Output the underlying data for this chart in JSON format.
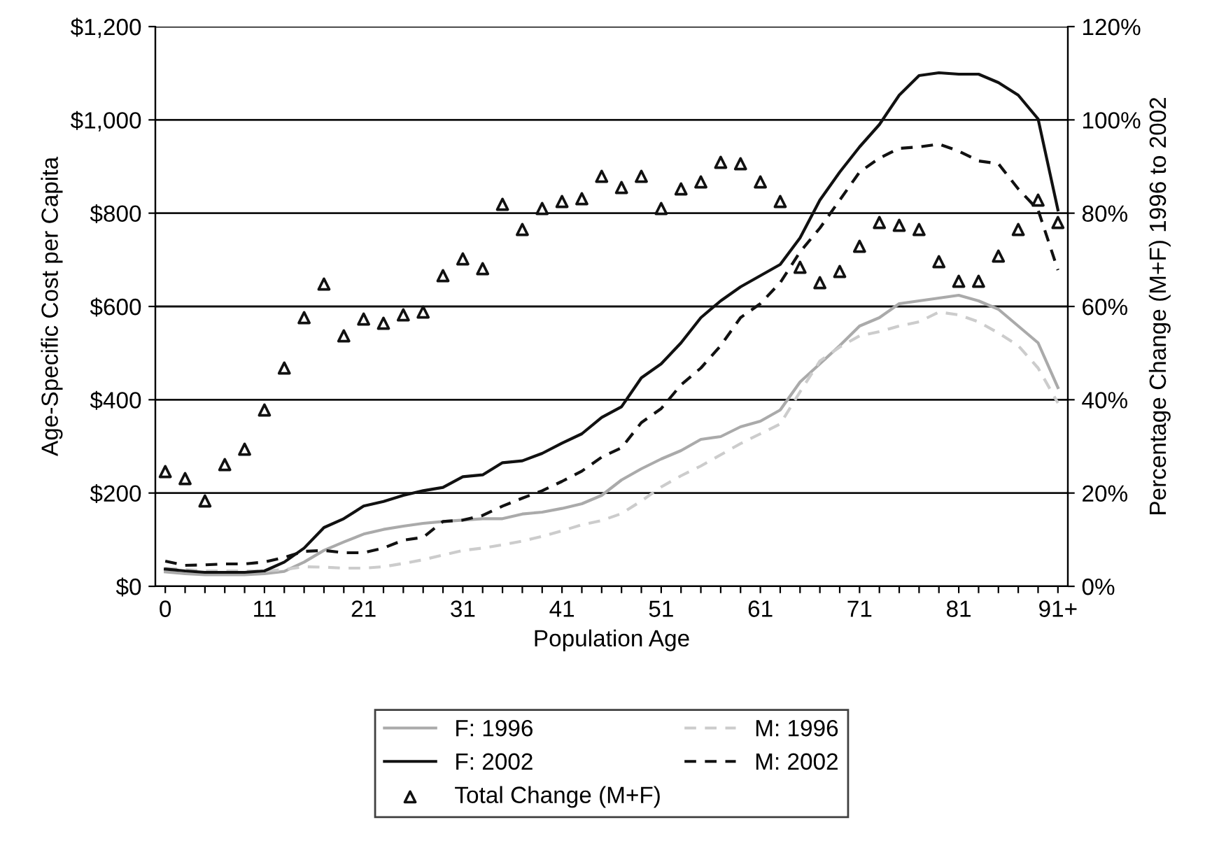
{
  "chart_data": {
    "type": "line",
    "xlabel": "Population Age",
    "ylabel": "Age-Specific Cost per Capita",
    "y2label": "Percentage Change (M+F) 1996 to 2002",
    "categories": [
      "0",
      null,
      null,
      null,
      null,
      "11",
      null,
      null,
      null,
      null,
      "21",
      null,
      null,
      null,
      null,
      "31",
      null,
      null,
      null,
      null,
      "41",
      null,
      null,
      null,
      null,
      "51",
      null,
      null,
      null,
      null,
      "61",
      null,
      null,
      null,
      null,
      "71",
      null,
      null,
      null,
      null,
      "81",
      null,
      null,
      null,
      null,
      "91+"
    ],
    "ylim": [
      0,
      1200
    ],
    "yticks": [
      {
        "value": 0,
        "label": "$0"
      },
      {
        "value": 200,
        "label": "$200"
      },
      {
        "value": 400,
        "label": "$400"
      },
      {
        "value": 600,
        "label": "$600"
      },
      {
        "value": 800,
        "label": "$800"
      },
      {
        "value": 1000,
        "label": "$1,000"
      },
      {
        "value": 1200,
        "label": "$1,200"
      }
    ],
    "y2lim": [
      0,
      120
    ],
    "y2ticks": [
      {
        "value": 0,
        "label": "0%"
      },
      {
        "value": 20,
        "label": "20%"
      },
      {
        "value": 40,
        "label": "40%"
      },
      {
        "value": 60,
        "label": "60%"
      },
      {
        "value": 80,
        "label": "80%"
      },
      {
        "value": 100,
        "label": "100%"
      },
      {
        "value": 120,
        "label": "120%"
      }
    ],
    "grid": "y",
    "legend": "bottom",
    "series": [
      {
        "name": "F: 1996",
        "color": "#aaaaaa",
        "line_style": "solid",
        "values": [
          31,
          27,
          25,
          25,
          25,
          27,
          32,
          52,
          77,
          95,
          112,
          122,
          129,
          135,
          139,
          142,
          145,
          145,
          155,
          159,
          167,
          177,
          195,
          228,
          252,
          273,
          291,
          315,
          321,
          342,
          354,
          378,
          438,
          477,
          516,
          558,
          576,
          606,
          612,
          618,
          624,
          612,
          594,
          558,
          522,
          426
        ]
      },
      {
        "name": "M: 1996",
        "color": "#cccccc",
        "line_style": "dashed",
        "values": [
          39,
          36,
          33,
          33,
          33,
          33,
          36,
          42,
          41,
          39,
          39,
          42,
          49,
          57,
          67,
          77,
          82,
          89,
          97,
          107,
          119,
          132,
          141,
          156,
          183,
          213,
          237,
          258,
          282,
          306,
          327,
          348,
          417,
          483,
          513,
          537,
          546,
          558,
          567,
          588,
          582,
          567,
          543,
          516,
          468,
          393
        ]
      },
      {
        "name": "F: 2002",
        "color": "#111111",
        "line_style": "solid",
        "values": [
          37,
          33,
          30,
          30,
          30,
          33,
          52,
          82,
          126,
          145,
          172,
          182,
          195,
          205,
          212,
          235,
          239,
          265,
          269,
          285,
          307,
          327,
          362,
          385,
          447,
          477,
          522,
          576,
          612,
          642,
          666,
          690,
          747,
          828,
          888,
          942,
          990,
          1053,
          1095,
          1101,
          1098,
          1098,
          1080,
          1053,
          1002,
          807
        ]
      },
      {
        "name": "M: 2002",
        "color": "#111111",
        "line_style": "dashed",
        "values": [
          54,
          45,
          46,
          48,
          48,
          52,
          62,
          75,
          77,
          72,
          72,
          82,
          99,
          105,
          139,
          142,
          152,
          172,
          189,
          205,
          225,
          247,
          277,
          297,
          351,
          381,
          432,
          468,
          516,
          576,
          606,
          651,
          717,
          768,
          828,
          888,
          918,
          939,
          942,
          948,
          933,
          912,
          906,
          852,
          807,
          678
        ]
      },
      {
        "name": "Total Change (M+F)",
        "type": "scatter",
        "axis": "y2",
        "marker": "triangle",
        "color": "#111111",
        "values": [
          24.6,
          23.1,
          18.3,
          26.1,
          29.4,
          37.8,
          46.8,
          57.6,
          64.8,
          53.7,
          57.3,
          56.4,
          58.2,
          58.8,
          66.6,
          70.2,
          68.1,
          81.9,
          76.5,
          81,
          82.5,
          83.1,
          87.9,
          85.5,
          87.9,
          81,
          85.2,
          86.7,
          90.9,
          90.6,
          86.7,
          82.5,
          68.4,
          65.1,
          67.5,
          72.9,
          78,
          77.4,
          76.5,
          69.6,
          65.4,
          65.4,
          70.8,
          76.5,
          82.8,
          78
        ]
      }
    ]
  }
}
